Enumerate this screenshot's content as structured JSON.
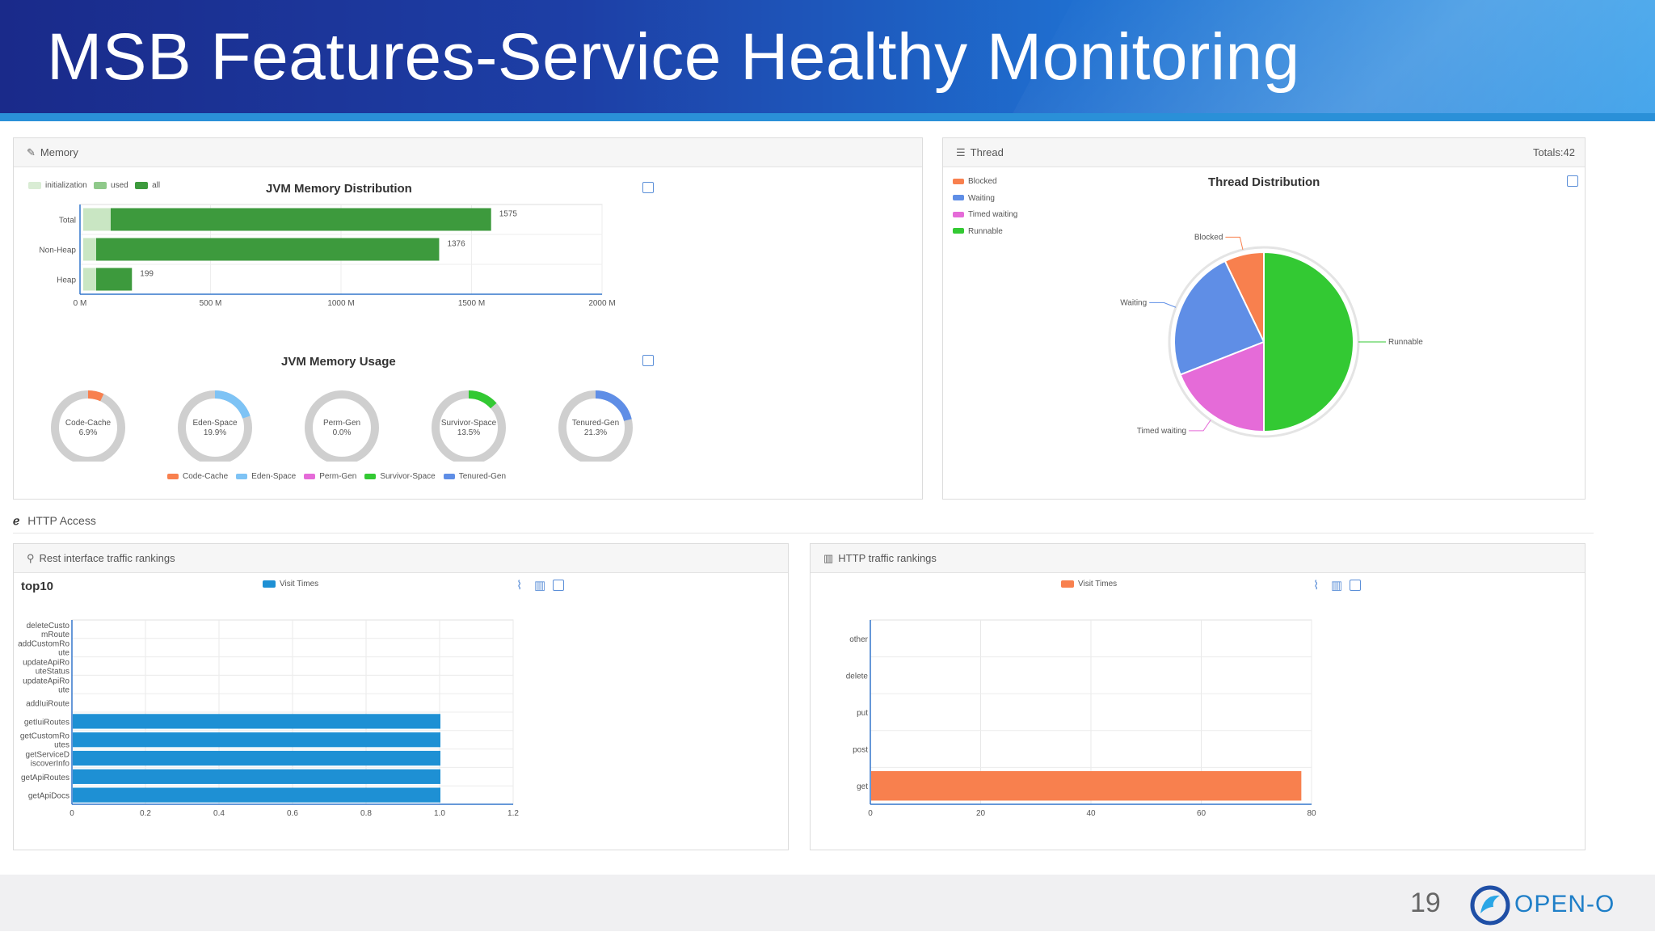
{
  "slide": {
    "title": "MSB Features-Service Healthy Monitoring",
    "page_number": "19",
    "logo_text": "OPEN-O",
    "brand_color": "#1f3fa6"
  },
  "memory_panel": {
    "header": "Memory",
    "distribution": {
      "title": "JVM Memory Distribution",
      "legend": [
        "initialization",
        "used",
        "all"
      ],
      "categories": [
        "Total",
        "Non-Heap",
        "Heap"
      ],
      "values": [
        1575,
        1376,
        199
      ],
      "ticks": [
        "0 M",
        "500 M",
        "1000 M",
        "1500 M",
        "2000 M"
      ]
    },
    "usage": {
      "title": "JVM Memory Usage",
      "gauges": [
        {
          "name": "Code-Cache",
          "pct": "6.9%",
          "value": 6.9,
          "color": "#f8804e"
        },
        {
          "name": "Eden-Space",
          "pct": "19.9%",
          "value": 19.9,
          "color": "#7ec3f5"
        },
        {
          "name": "Perm-Gen",
          "pct": "0.0%",
          "value": 0.0,
          "color": "#e56bd8"
        },
        {
          "name": "Survivor-Space",
          "pct": "13.5%",
          "value": 13.5,
          "color": "#33c933"
        },
        {
          "name": "Tenured-Gen",
          "pct": "21.3%",
          "value": 21.3,
          "color": "#5f8ee6"
        }
      ]
    }
  },
  "thread_panel": {
    "header": "Thread",
    "totals": "Totals:42",
    "title": "Thread Distribution",
    "legend": [
      {
        "name": "Blocked",
        "color": "#f8804e"
      },
      {
        "name": "Waiting",
        "color": "#5f8ee6"
      },
      {
        "name": "Timed waiting",
        "color": "#e56bd8"
      },
      {
        "name": "Runnable",
        "color": "#33c933"
      }
    ]
  },
  "http_access": {
    "label": "HTTP Access"
  },
  "rest_panel": {
    "header": "Rest interface traffic rankings",
    "subtitle": "top10",
    "legend": "Visit Times",
    "categories": [
      [
        "deleteCusto",
        "mRoute"
      ],
      [
        "addCustomRo",
        "ute"
      ],
      [
        "updateApiRo",
        "uteStatus"
      ],
      [
        "updateApiRo",
        "ute"
      ],
      [
        "addIuiRoute"
      ],
      [
        "getIuiRoutes"
      ],
      [
        "getCustomRo",
        "utes"
      ],
      [
        "getServiceD",
        "iscoverInfo"
      ],
      [
        "getApiRoutes"
      ],
      [
        "getApiDocs"
      ]
    ],
    "values": [
      0,
      0,
      0,
      0,
      0,
      1,
      1,
      1,
      1,
      1
    ],
    "ticks": [
      "0",
      "0.2",
      "0.4",
      "0.6",
      "0.8",
      "1.0",
      "1.2"
    ]
  },
  "http_panel": {
    "header": "HTTP traffic rankings",
    "legend": "Visit Times",
    "categories": [
      "other",
      "delete",
      "put",
      "post",
      "get"
    ],
    "values": [
      0,
      0,
      0,
      0,
      78
    ],
    "ticks": [
      "0",
      "20",
      "40",
      "60",
      "80"
    ]
  },
  "chart_data": [
    {
      "type": "bar",
      "title": "JVM Memory Distribution",
      "categories": [
        "Total",
        "Non-Heap",
        "Heap"
      ],
      "values": [
        1575,
        1376,
        199
      ],
      "xlim": [
        0,
        2000
      ]
    },
    {
      "type": "pie",
      "title": "Thread Distribution",
      "categories": [
        "Blocked",
        "Waiting",
        "Timed waiting",
        "Runnable"
      ],
      "values": [
        3,
        10,
        8,
        21
      ]
    },
    {
      "type": "bar",
      "title": "top10",
      "series": [
        {
          "name": "Visit Times",
          "values": [
            0,
            0,
            0,
            0,
            0,
            1,
            1,
            1,
            1,
            1
          ]
        }
      ],
      "categories": [
        "deleteCustomRoute",
        "addCustomRoute",
        "updateApiRouteStatus",
        "updateApiRoute",
        "addIuiRoute",
        "getIuiRoutes",
        "getCustomRoutes",
        "getServiceDiscoverInfo",
        "getApiRoutes",
        "getApiDocs"
      ],
      "xlim": [
        0,
        1.2
      ]
    },
    {
      "type": "bar",
      "series": [
        {
          "name": "Visit Times",
          "values": [
            0,
            0,
            0,
            0,
            78
          ]
        }
      ],
      "categories": [
        "other",
        "delete",
        "put",
        "post",
        "get"
      ],
      "xlim": [
        0,
        80
      ]
    }
  ]
}
